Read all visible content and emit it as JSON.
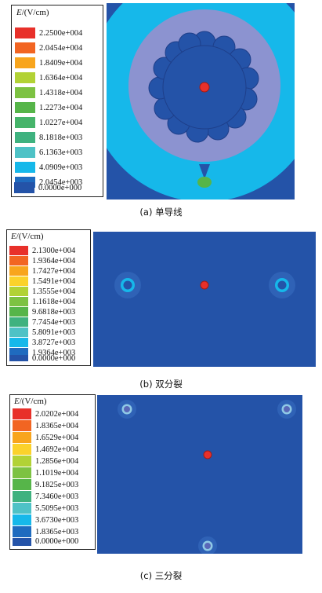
{
  "legend_unit": "/(V/cm)",
  "legend_symbol": "E",
  "legend_colors": [
    "#e8302a",
    "#f26522",
    "#f8a51d",
    "#fbd22b",
    "#b2d235",
    "#7dc242",
    "#56b549",
    "#3fb27f",
    "#4ec2c6",
    "#16b8ea",
    "#2296d3",
    "#1f6bbf",
    "#2453a8"
  ],
  "panels": [
    {
      "caption": "(a) 单导线",
      "values": [
        "2.2500e+004",
        "2.0454e+004",
        "1.8409e+004",
        "1.6364e+004",
        "1.4318e+004",
        "1.2273e+004",
        "1.0227e+004",
        "8.1818e+003",
        "6.1363e+003",
        "4.0909e+003",
        "2.0454e+003",
        "0.0000e+000"
      ]
    },
    {
      "caption": "(b) 双分裂",
      "values": [
        "2.1300e+004",
        "1.9364e+004",
        "1.7427e+004",
        "1.5491e+004",
        "1.3555e+004",
        "1.1618e+004",
        "9.6818e+003",
        "7.7454e+003",
        "5.8091e+003",
        "3.8727e+003",
        "1.9364e+003",
        "0.0000e+000"
      ]
    },
    {
      "caption": "(c) 三分裂",
      "values": [
        "2.0202e+004",
        "1.8365e+004",
        "1.6529e+004",
        "1.4692e+004",
        "1.2856e+004",
        "1.1019e+004",
        "9.1825e+003",
        "7.3460e+003",
        "5.5095e+003",
        "3.6730e+003",
        "1.8365e+003",
        "0.0000e+000"
      ]
    }
  ]
}
